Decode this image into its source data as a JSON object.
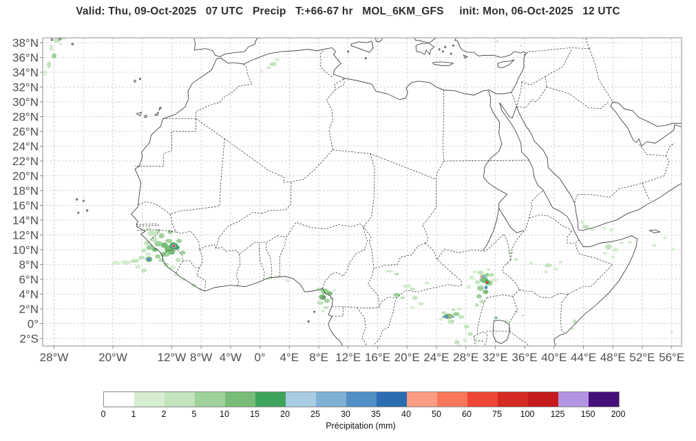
{
  "title": "Valid: Thu, 09-Oct-2025   07 UTC   Precip   T:+66-67 hr   MOL_6KM_GFS     init: Mon, 06-Oct-2025   12 UTC",
  "map": {
    "lat_ticks": [
      {
        "label": "38°N",
        "lat": 38
      },
      {
        "label": "36°N",
        "lat": 36
      },
      {
        "label": "34°N",
        "lat": 34
      },
      {
        "label": "32°N",
        "lat": 32
      },
      {
        "label": "30°N",
        "lat": 30
      },
      {
        "label": "28°N",
        "lat": 28
      },
      {
        "label": "26°N",
        "lat": 26
      },
      {
        "label": "24°N",
        "lat": 24
      },
      {
        "label": "22°N",
        "lat": 22
      },
      {
        "label": "20°N",
        "lat": 20
      },
      {
        "label": "18°N",
        "lat": 18
      },
      {
        "label": "16°N",
        "lat": 16
      },
      {
        "label": "14°N",
        "lat": 14
      },
      {
        "label": "12°N",
        "lat": 12
      },
      {
        "label": "10°N",
        "lat": 10
      },
      {
        "label": "8°N",
        "lat": 8
      },
      {
        "label": "6°N",
        "lat": 6
      },
      {
        "label": "4°N",
        "lat": 4
      },
      {
        "label": "2°N",
        "lat": 2
      },
      {
        "label": "0°",
        "lat": 0
      },
      {
        "label": "2°S",
        "lat": -2
      }
    ],
    "lon_ticks": [
      {
        "label": "28°W",
        "lon": -28
      },
      {
        "label": "20°W",
        "lon": -20
      },
      {
        "label": "12°W",
        "lon": -12
      },
      {
        "label": "8°W",
        "lon": -8
      },
      {
        "label": "4°W",
        "lon": -4
      },
      {
        "label": "0°",
        "lon": 0
      },
      {
        "label": "4°E",
        "lon": 4
      },
      {
        "label": "8°E",
        "lon": 8
      },
      {
        "label": "12°E",
        "lon": 12
      },
      {
        "label": "16°E",
        "lon": 16
      },
      {
        "label": "20°E",
        "lon": 20
      },
      {
        "label": "24°E",
        "lon": 24
      },
      {
        "label": "28°E",
        "lon": 28
      },
      {
        "label": "32°E",
        "lon": 32
      },
      {
        "label": "36°E",
        "lon": 36
      },
      {
        "label": "40°E",
        "lon": 40
      },
      {
        "label": "44°E",
        "lon": 44
      },
      {
        "label": "48°E",
        "lon": 48
      },
      {
        "label": "52°E",
        "lon": 52
      },
      {
        "label": "56°E",
        "lon": 56
      }
    ],
    "grid": {
      "lon_min": -28,
      "lon_max": 56,
      "lon_step": 4,
      "lat_min": -2,
      "lat_max": 38,
      "lat_step": 2
    }
  },
  "colorbar": {
    "label": "Précipitation (mm)",
    "ticks": [
      "0",
      "1",
      "2",
      "5",
      "10",
      "15",
      "20",
      "25",
      "30",
      "35",
      "40",
      "50",
      "60",
      "75",
      "100",
      "125",
      "150",
      "200"
    ],
    "colors": [
      "#ffffff",
      "#d6edd1",
      "#c3e4bd",
      "#9ed29b",
      "#77bd78",
      "#3fa45b",
      "#a8cce3",
      "#7fb0d5",
      "#5190c6",
      "#2c6cb0",
      "#fa9c81",
      "#f8775b",
      "#ee4634",
      "#d42a21",
      "#c41a1b",
      "#b295e2",
      "#45107a"
    ]
  },
  "precipitation": {
    "units": "mm",
    "cells": [
      [
        -27.6,
        38.3,
        5,
        3,
        2
      ],
      [
        -26.8,
        38.5,
        4,
        2,
        1
      ],
      [
        -28.4,
        37.3,
        3,
        5,
        1
      ],
      [
        -28.0,
        36.2,
        3.5,
        4,
        3
      ],
      [
        -28.7,
        35.0,
        3,
        5,
        2
      ],
      [
        -29.2,
        33.9,
        2.5,
        4,
        1
      ],
      [
        -27.1,
        37.8,
        2,
        2,
        1
      ],
      [
        -0.7,
        38.1,
        2,
        1.5,
        1
      ],
      [
        32.2,
        38.2,
        3,
        1.5,
        1
      ],
      [
        35.5,
        37.6,
        2,
        1.5,
        1
      ],
      [
        2.3,
        35.7,
        4,
        2,
        1
      ],
      [
        1.8,
        35.1,
        5,
        3,
        2
      ],
      [
        1.2,
        34.6,
        4,
        2,
        1
      ],
      [
        0.2,
        34.1,
        2,
        2,
        1
      ],
      [
        -19.6,
        8.2,
        6,
        3,
        1
      ],
      [
        -18.2,
        8.3,
        8,
        3,
        1
      ],
      [
        -17.0,
        8.5,
        6,
        3,
        2
      ],
      [
        -16.1,
        8.9,
        5,
        3,
        2
      ],
      [
        -15.2,
        9.4,
        4,
        3,
        1
      ],
      [
        -16.6,
        7.7,
        4,
        3,
        1
      ],
      [
        -15.8,
        7.2,
        4,
        3,
        2
      ],
      [
        -15.2,
        12.8,
        4,
        3,
        1
      ],
      [
        -14.7,
        12.2,
        6,
        4,
        2
      ],
      [
        -13.9,
        12.5,
        4,
        3,
        2
      ],
      [
        -13.4,
        11.9,
        4,
        4,
        3
      ],
      [
        -14.4,
        11.4,
        5,
        4,
        2
      ],
      [
        -12.2,
        12.4,
        4,
        3,
        3
      ],
      [
        -15.4,
        10.9,
        4,
        3,
        2
      ],
      [
        -15.0,
        10.3,
        5,
        4,
        3
      ],
      [
        -14.3,
        10.0,
        4,
        3,
        4
      ],
      [
        -15.8,
        9.9,
        4,
        3,
        2
      ],
      [
        -13.8,
        10.8,
        6,
        4,
        3
      ],
      [
        -13.0,
        10.6,
        5,
        4,
        4
      ],
      [
        -12.4,
        10.1,
        6,
        5,
        4
      ],
      [
        -11.9,
        10.7,
        4,
        4,
        3
      ],
      [
        -11.3,
        10.3,
        4,
        3,
        5
      ],
      [
        -12.9,
        9.4,
        7,
        4,
        3
      ],
      [
        -13.9,
        9.1,
        4,
        3,
        3
      ],
      [
        -12.0,
        9.7,
        5,
        4,
        4
      ],
      [
        -11.0,
        11.2,
        4,
        3,
        3
      ],
      [
        -12.4,
        11.2,
        5,
        3,
        3
      ],
      [
        -13.4,
        8.6,
        5,
        3,
        2
      ],
      [
        -12.8,
        8.0,
        4,
        3,
        2
      ],
      [
        -11.9,
        7.6,
        5,
        3,
        1
      ],
      [
        -11.1,
        8.6,
        4,
        3,
        2
      ],
      [
        -10.5,
        9.6,
        4,
        3,
        3
      ],
      [
        -11.4,
        6.6,
        4,
        2,
        1
      ],
      [
        -10.4,
        6.0,
        4,
        2,
        1
      ],
      [
        -9.0,
        5.2,
        4,
        2,
        2
      ],
      [
        -8.1,
        4.6,
        3,
        2,
        1
      ],
      [
        -15.1,
        8.7,
        5,
        4,
        4
      ],
      [
        -15.1,
        8.7,
        2.5,
        2.5,
        8
      ],
      [
        -11.7,
        10.5,
        6,
        5,
        5
      ],
      [
        -11.7,
        10.5,
        3.5,
        3,
        7
      ],
      [
        -11.7,
        10.5,
        1.8,
        1.8,
        12
      ],
      [
        1.3,
        6.1,
        4,
        2,
        1
      ],
      [
        2.3,
        6.4,
        3,
        2,
        1
      ],
      [
        3.8,
        5.8,
        3,
        2,
        1
      ],
      [
        8.8,
        4.4,
        6,
        4,
        3
      ],
      [
        9.5,
        4.1,
        4,
        3,
        4
      ],
      [
        8.5,
        3.6,
        5,
        4,
        4
      ],
      [
        9.1,
        3.1,
        4,
        3,
        3
      ],
      [
        8.2,
        2.8,
        5,
        3,
        2
      ],
      [
        9.7,
        3.4,
        3,
        2,
        2
      ],
      [
        8.0,
        4.7,
        4,
        2,
        2
      ],
      [
        9.0,
        2.2,
        4,
        2,
        2
      ],
      [
        8.6,
        1.7,
        3,
        2,
        1
      ],
      [
        10.1,
        4.5,
        3,
        2,
        1
      ],
      [
        17.6,
        7.1,
        6,
        2,
        1
      ],
      [
        18.6,
        6.7,
        4,
        2,
        2
      ],
      [
        18.6,
        3.9,
        5,
        3,
        3
      ],
      [
        19.4,
        3.5,
        4,
        2,
        2
      ],
      [
        21.1,
        3.5,
        4,
        3,
        2
      ],
      [
        21.9,
        2.7,
        4,
        3,
        1
      ],
      [
        20.7,
        2.2,
        3,
        2,
        1
      ],
      [
        22.7,
        5.5,
        4,
        2,
        1
      ],
      [
        20.0,
        5.1,
        6,
        3,
        1
      ],
      [
        20.7,
        4.7,
        4,
        2,
        2
      ],
      [
        30.0,
        6.9,
        5,
        3,
        2
      ],
      [
        30.4,
        6.3,
        5,
        4,
        3
      ],
      [
        29.6,
        5.6,
        4,
        3,
        2
      ],
      [
        30.5,
        5.9,
        6,
        4,
        4
      ],
      [
        31.2,
        5.5,
        5,
        4,
        3
      ],
      [
        30.0,
        4.8,
        5,
        4,
        3
      ],
      [
        30.7,
        4.3,
        4,
        3,
        4
      ],
      [
        29.8,
        3.7,
        4,
        3,
        3
      ],
      [
        30.2,
        3.0,
        4,
        3,
        2
      ],
      [
        29.5,
        2.5,
        3,
        3,
        2
      ],
      [
        31.5,
        6.6,
        4,
        3,
        2
      ],
      [
        31.9,
        5.9,
        4,
        3,
        1
      ],
      [
        28.8,
        6.2,
        4,
        3,
        1
      ],
      [
        28.4,
        5.0,
        3,
        3,
        1
      ],
      [
        31.1,
        7.3,
        3,
        2,
        1
      ],
      [
        29.2,
        7.0,
        3,
        2,
        1
      ],
      [
        30.9,
        6.6,
        3,
        3,
        3
      ],
      [
        30.45,
        6.35,
        2.5,
        2.5,
        7
      ],
      [
        30.1,
        6.4,
        1.3,
        2.2,
        10
      ],
      [
        30.9,
        5.6,
        3.5,
        3,
        5
      ],
      [
        30.9,
        5.6,
        1.8,
        1.8,
        12
      ],
      [
        30.75,
        4.9,
        2.5,
        3,
        7
      ],
      [
        30.78,
        4.9,
        1.2,
        1.8,
        9
      ],
      [
        25.6,
        1.0,
        7,
        4,
        4
      ],
      [
        26.7,
        1.3,
        5,
        3,
        3
      ],
      [
        27.4,
        0.9,
        4,
        3,
        2
      ],
      [
        26.0,
        0.3,
        5,
        3,
        2
      ],
      [
        25.0,
        1.5,
        4,
        2,
        2
      ],
      [
        24.6,
        0.6,
        3,
        2,
        1
      ],
      [
        27.1,
        2.0,
        4,
        2,
        1
      ],
      [
        26.3,
        1.9,
        3,
        2,
        2
      ],
      [
        25.4,
        0.95,
        2.5,
        2,
        8
      ],
      [
        25.85,
        1.0,
        1.5,
        1.5,
        10
      ],
      [
        24.9,
        0.9,
        1.2,
        1.2,
        8
      ],
      [
        26.3,
        0.9,
        1.5,
        1.5,
        7
      ],
      [
        28.1,
        -0.4,
        4,
        3,
        2
      ],
      [
        28.6,
        -1.4,
        4,
        3,
        2
      ],
      [
        27.9,
        -2.3,
        3,
        2,
        1
      ],
      [
        26.8,
        -2.5,
        4,
        3,
        2
      ],
      [
        27.1,
        -3.0,
        4,
        2,
        1
      ],
      [
        29.3,
        -2.0,
        3,
        2,
        1
      ],
      [
        32.1,
        0.8,
        3,
        2,
        3
      ],
      [
        32.1,
        0.8,
        1.3,
        1.3,
        7
      ],
      [
        33.6,
        0.4,
        3,
        2,
        1
      ],
      [
        34.8,
        1.6,
        3,
        2,
        1
      ],
      [
        35.7,
        1.1,
        2,
        2,
        1
      ],
      [
        34.1,
        9.6,
        4,
        2,
        1
      ],
      [
        34.8,
        8.7,
        3,
        2,
        2
      ],
      [
        33.7,
        8.1,
        3,
        2,
        1
      ],
      [
        36.9,
        8.2,
        3,
        2,
        1
      ],
      [
        39.2,
        7.9,
        5,
        3,
        2
      ],
      [
        40.2,
        7.4,
        4,
        2,
        1
      ],
      [
        38.9,
        7.0,
        3,
        2,
        1
      ],
      [
        40.9,
        8.3,
        3,
        2,
        1
      ],
      [
        44.3,
        13.1,
        5,
        3,
        2
      ],
      [
        45.2,
        12.7,
        4,
        2,
        1
      ],
      [
        43.9,
        13.7,
        3,
        2,
        1
      ],
      [
        46.8,
        12.9,
        3,
        2,
        1
      ],
      [
        47.8,
        12.7,
        3,
        2,
        1
      ],
      [
        47.4,
        10.4,
        5,
        4,
        2
      ],
      [
        48.4,
        10.0,
        4,
        3,
        1
      ],
      [
        46.9,
        9.5,
        3,
        2,
        1
      ],
      [
        49.2,
        10.9,
        3,
        2,
        1
      ],
      [
        50.3,
        11.0,
        3,
        2,
        1
      ],
      [
        48.0,
        9.0,
        3,
        2,
        1
      ],
      [
        42.8,
        0.3,
        3,
        3,
        2
      ],
      [
        42.5,
        -0.7,
        3,
        2,
        1
      ],
      [
        53.6,
        10.6,
        4,
        2,
        1
      ],
      [
        55.1,
        11.6,
        3,
        2,
        1
      ],
      [
        56.2,
        10.1,
        3,
        2,
        1
      ],
      [
        56.0,
        -1.1,
        2,
        2,
        1
      ]
    ]
  }
}
